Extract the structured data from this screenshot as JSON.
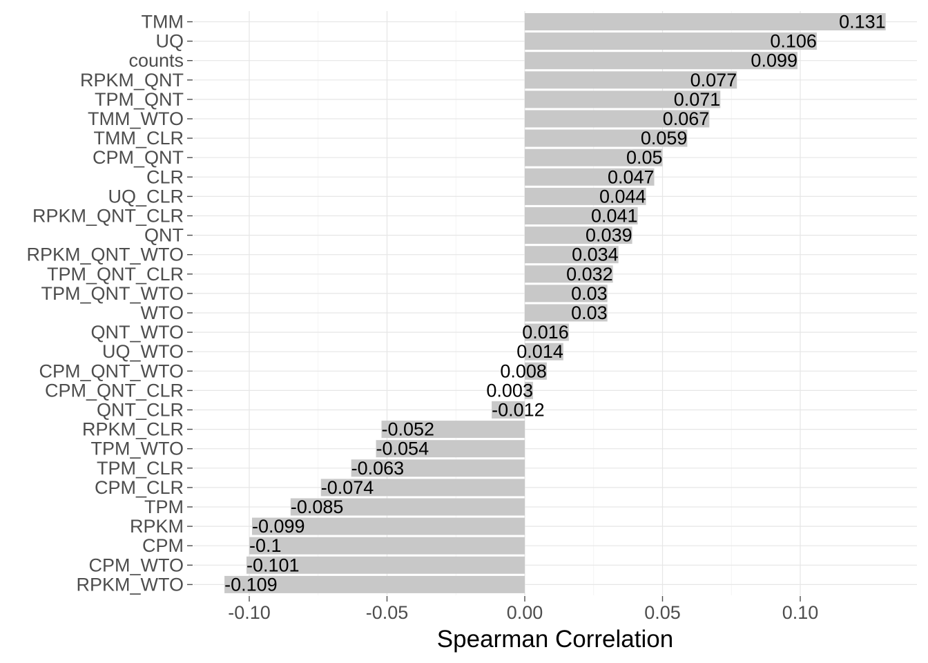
{
  "chart_data": {
    "type": "bar",
    "orientation": "horizontal",
    "xlabel": "Spearman Correlation",
    "ylabel": "",
    "xlim": [
      -0.12,
      0.142
    ],
    "xticks": [
      -0.1,
      -0.05,
      0.0,
      0.05,
      0.1
    ],
    "xtick_labels": [
      "-0.10",
      "-0.05",
      "0.00",
      "0.05",
      "0.10"
    ],
    "grid": true,
    "bar_color": "#c8c8c8",
    "categories": [
      "TMM",
      "UQ",
      "counts",
      "RPKM_QNT",
      "TPM_QNT",
      "TMM_WTO",
      "TMM_CLR",
      "CPM_QNT",
      "CLR",
      "UQ_CLR",
      "RPKM_QNT_CLR",
      "QNT",
      "RPKM_QNT_WTO",
      "TPM_QNT_CLR",
      "TPM_QNT_WTO",
      "WTO",
      "QNT_WTO",
      "UQ_WTO",
      "CPM_QNT_WTO",
      "CPM_QNT_CLR",
      "QNT_CLR",
      "RPKM_CLR",
      "TPM_WTO",
      "TPM_CLR",
      "CPM_CLR",
      "TPM",
      "RPKM",
      "CPM",
      "CPM_WTO",
      "RPKM_WTO"
    ],
    "values": [
      0.131,
      0.106,
      0.099,
      0.077,
      0.071,
      0.067,
      0.059,
      0.05,
      0.047,
      0.044,
      0.041,
      0.039,
      0.034,
      0.032,
      0.03,
      0.03,
      0.016,
      0.014,
      0.008,
      0.003,
      -0.012,
      -0.052,
      -0.054,
      -0.063,
      -0.074,
      -0.085,
      -0.099,
      -0.1,
      -0.101,
      -0.109
    ],
    "value_labels": [
      "0.131",
      "0.106",
      "0.099",
      "0.077",
      "0.071",
      "0.067",
      "0.059",
      "0.05",
      "0.047",
      "0.044",
      "0.041",
      "0.039",
      "0.034",
      "0.032",
      "0.03",
      "0.03",
      "0.016",
      "0.014",
      "0.008",
      "0.003",
      "-0.012",
      "-0.052",
      "-0.054",
      "-0.063",
      "-0.074",
      "-0.085",
      "-0.099",
      "-0.1",
      "-0.101",
      "-0.109"
    ]
  }
}
